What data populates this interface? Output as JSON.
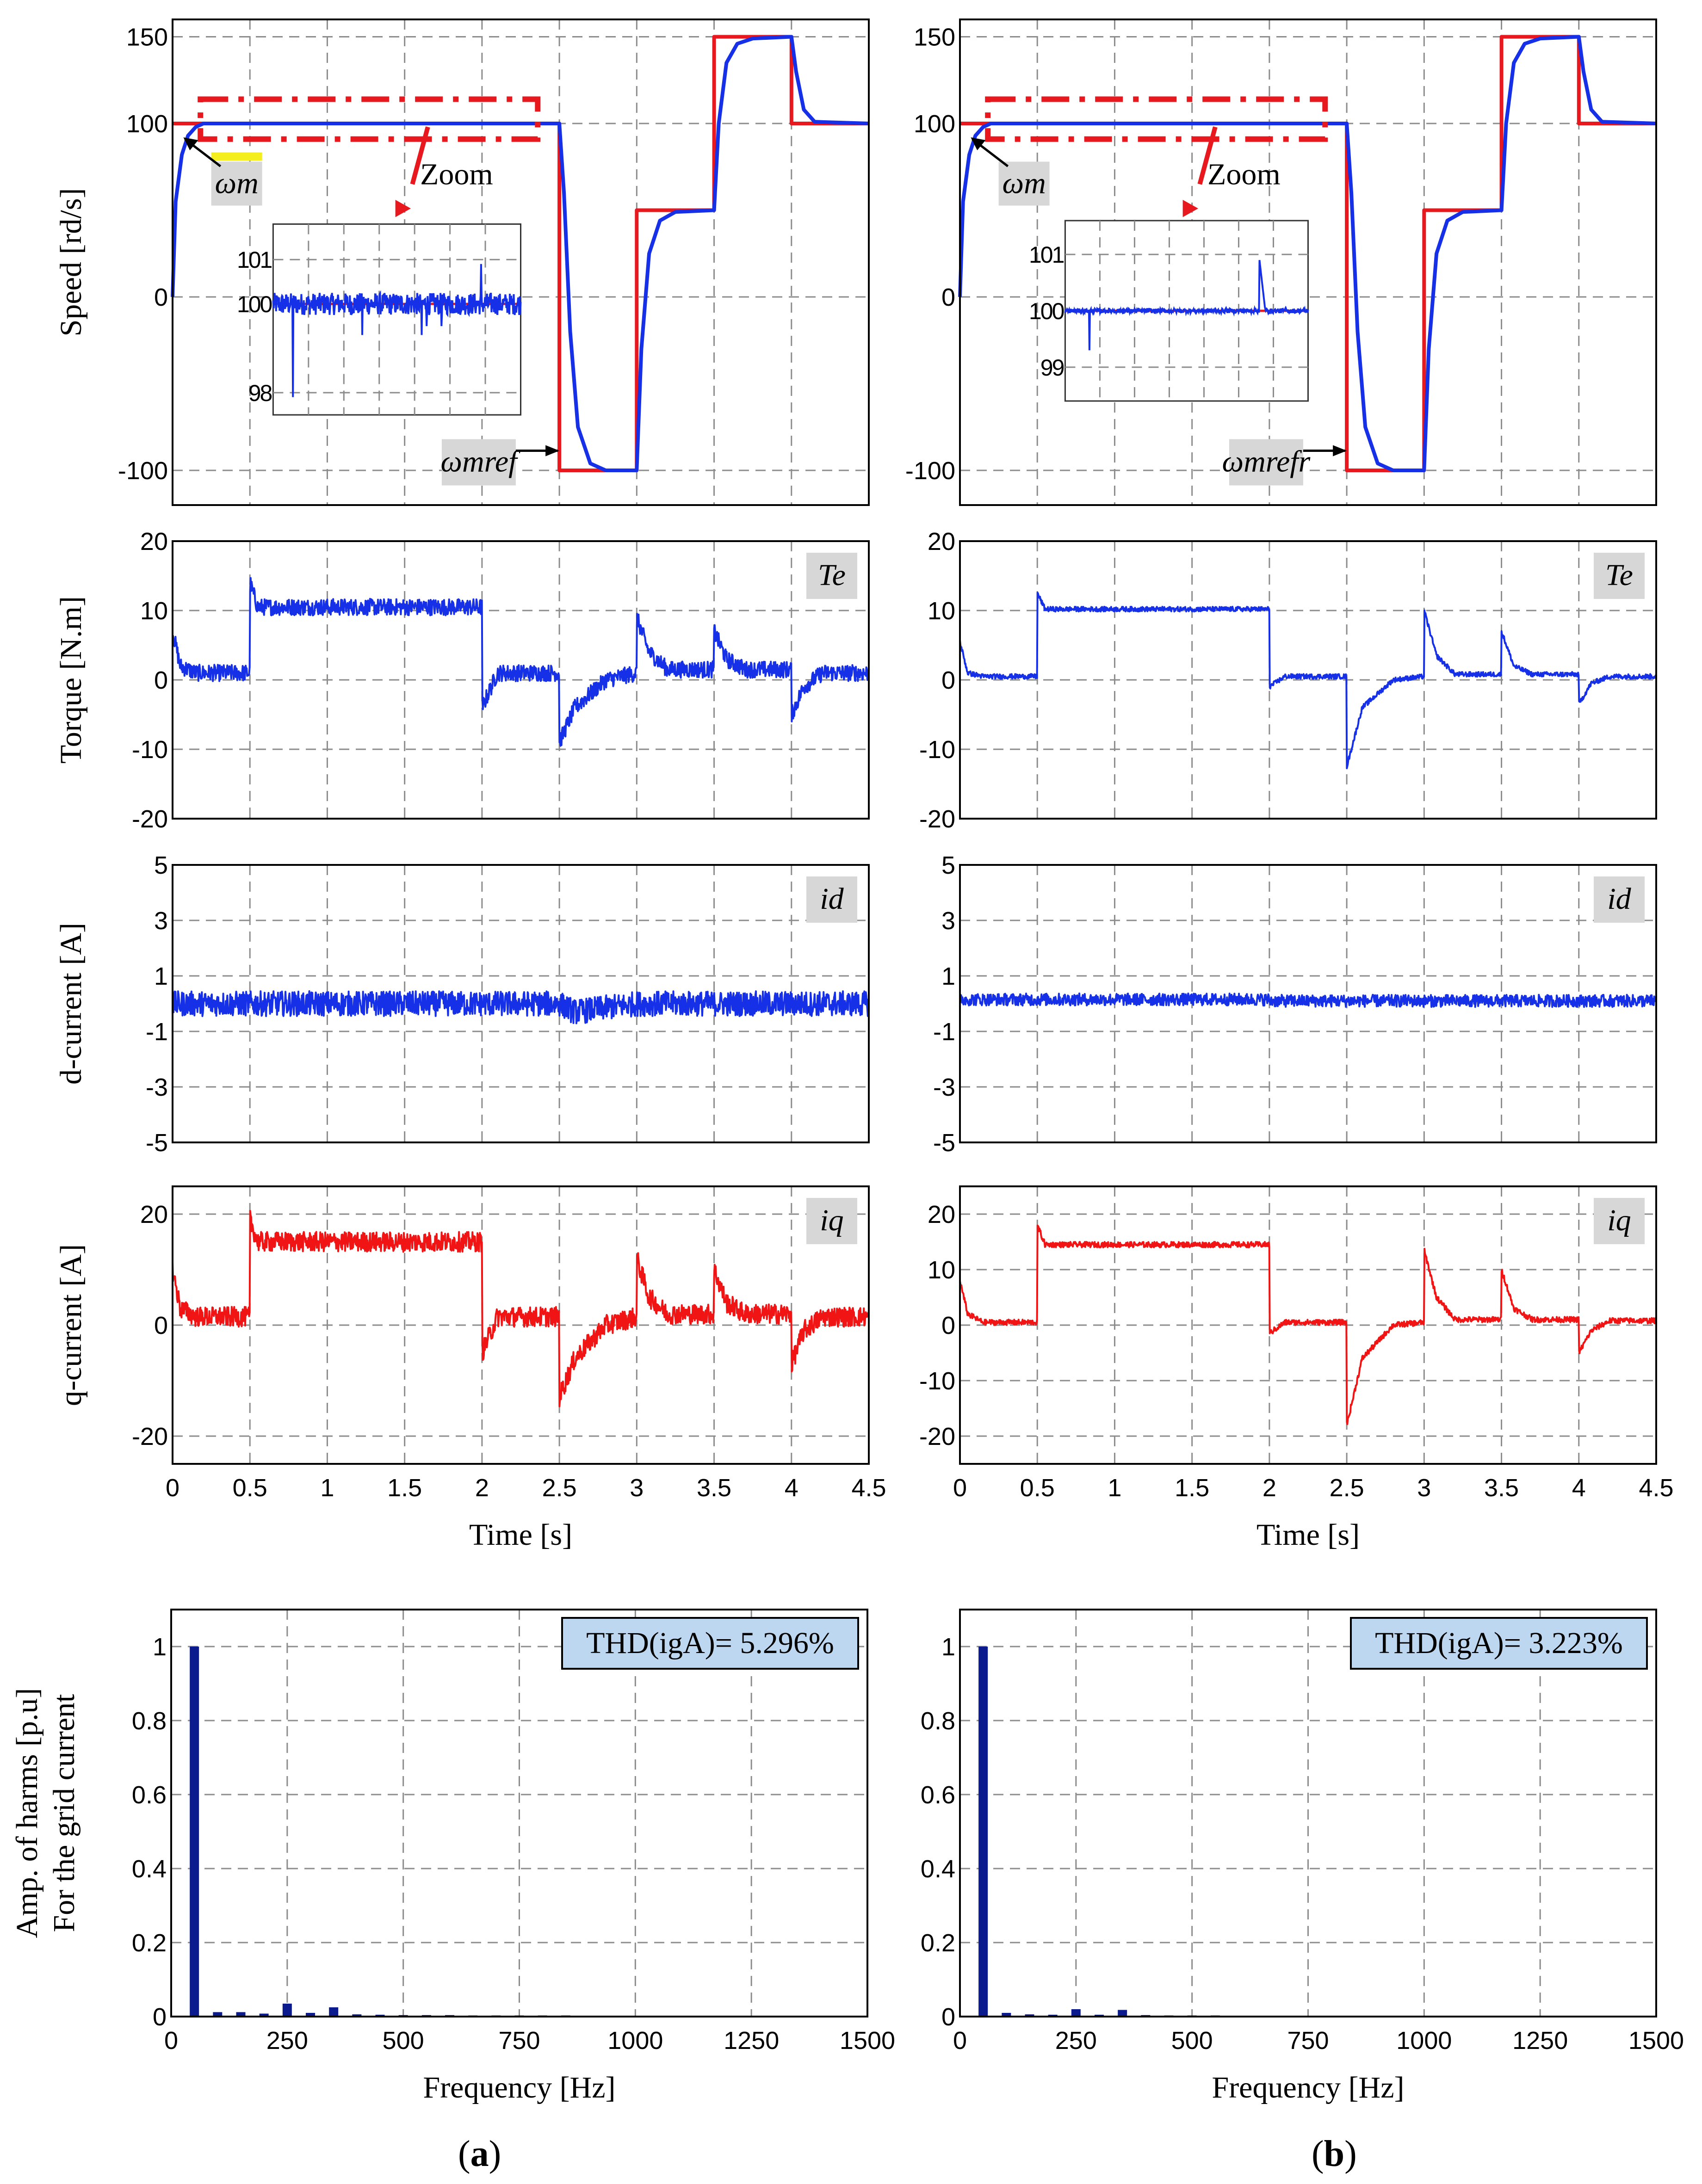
{
  "chart_data": [
    {
      "id": "a-speed",
      "type": "line",
      "panel": "a",
      "ylabel": "Speed [rd/s]",
      "xlabel": "",
      "xlim": [
        0,
        4.5
      ],
      "ylim": [
        -120,
        160
      ],
      "yticks": [
        "150",
        "100",
        "0",
        "-100"
      ],
      "ytick_values": [
        150,
        100,
        0,
        -100
      ],
      "grid": true,
      "series": [
        {
          "name": "reference",
          "color": "#e8191e",
          "x": [
            0,
            2.5,
            2.5,
            3.0,
            3.0,
            3.5,
            3.5,
            4.0,
            4.0,
            4.5
          ],
          "y": [
            100,
            100,
            -100,
            -100,
            50,
            50,
            150,
            150,
            100,
            100
          ]
        },
        {
          "name": "measured",
          "color": "#1530e6",
          "x": [
            0,
            0.02,
            0.06,
            0.1,
            0.15,
            0.2,
            2.5,
            2.53,
            2.57,
            2.62,
            2.7,
            2.8,
            3.0,
            3.03,
            3.08,
            3.15,
            3.25,
            3.5,
            3.53,
            3.58,
            3.65,
            3.75,
            4.0,
            4.03,
            4.08,
            4.15,
            4.5
          ],
          "y": [
            0,
            55,
            82,
            93,
            98,
            100,
            100,
            60,
            -20,
            -75,
            -96,
            -100,
            -100,
            -30,
            25,
            44,
            49,
            50,
            100,
            135,
            146,
            149,
            150,
            130,
            108,
            101,
            100
          ]
        }
      ],
      "annotations": {
        "zoom_label": "Zoom",
        "wm_label": "ωm",
        "wref_label": "ωmref"
      },
      "inset": {
        "yticks": [
          "101",
          "100",
          "98"
        ],
        "ytick_values": [
          101,
          100,
          98
        ],
        "ylim": [
          97.5,
          101.8
        ]
      }
    },
    {
      "id": "a-torque",
      "type": "line",
      "panel": "a",
      "ylabel": "Torque [N.m]",
      "xlim": [
        0,
        4.5
      ],
      "ylim": [
        -20,
        20
      ],
      "yticks": [
        "20",
        "10",
        "0",
        "-10",
        "-20"
      ],
      "ytick_values": [
        20,
        10,
        0,
        -10,
        -20
      ],
      "grid": true,
      "label": "Te",
      "series": [
        {
          "name": "Te",
          "color": "#1530e6",
          "x": [
            0,
            0.05,
            0.15,
            0.5,
            0.5,
            0.55,
            2.0,
            2.0,
            2.1,
            2.5,
            2.5,
            2.6,
            2.8,
            3.0,
            3.0,
            3.08,
            3.2,
            3.5,
            3.5,
            3.58,
            3.7,
            4.0,
            4.0,
            4.08,
            4.2,
            4.5
          ],
          "y": [
            7,
            2,
            1,
            1,
            14,
            10.5,
            10.5,
            -4,
            1,
            1,
            -9,
            -4,
            0,
            1,
            9,
            4,
            1.5,
            1.5,
            7,
            3,
            1.5,
            1.5,
            -5,
            -1,
            1,
            1
          ],
          "noise": 1.2
        }
      ]
    },
    {
      "id": "a-id",
      "type": "line",
      "panel": "a",
      "ylabel": "d-current [A]",
      "xlim": [
        0,
        4.5
      ],
      "ylim": [
        -5,
        5
      ],
      "yticks": [
        "5",
        "3",
        "1",
        "-1",
        "-3",
        "-5"
      ],
      "ytick_values": [
        5,
        3,
        1,
        -1,
        -3,
        -5
      ],
      "grid": true,
      "label": "id",
      "series": [
        {
          "name": "id",
          "color": "#1530e6",
          "x": [
            0,
            2.5,
            2.6,
            3.0,
            4.5
          ],
          "y": [
            0,
            0,
            -0.3,
            0,
            0
          ],
          "noise": 0.45
        }
      ]
    },
    {
      "id": "a-iq",
      "type": "line",
      "panel": "a",
      "ylabel": "q-current [A]",
      "xlim": [
        0,
        4.5
      ],
      "ylim": [
        -25,
        25
      ],
      "yticks": [
        "20",
        "0",
        "-20"
      ],
      "ytick_values": [
        20,
        0,
        -20
      ],
      "grid": true,
      "label": "iq",
      "series": [
        {
          "name": "iq",
          "color": "#f01414",
          "x": [
            0,
            0.05,
            0.15,
            0.5,
            0.5,
            0.55,
            2.0,
            2.0,
            2.1,
            2.5,
            2.5,
            2.6,
            2.8,
            3.0,
            3.0,
            3.08,
            3.2,
            3.5,
            3.5,
            3.58,
            3.7,
            4.0,
            4.0,
            4.08,
            4.2,
            4.5
          ],
          "y": [
            10,
            3,
            1.5,
            1.5,
            19,
            15,
            15,
            -5,
            1.5,
            1.5,
            -13,
            -6,
            0,
            1.5,
            12,
            5,
            2,
            2,
            10,
            4,
            2,
            2,
            -7,
            -1,
            1.5,
            1.5
          ],
          "noise": 1.8
        }
      ],
      "xticks": [
        "0",
        "0.5",
        "1",
        "1.5",
        "2",
        "2.5",
        "3",
        "3.5",
        "4",
        "4.5"
      ],
      "xtick_values": [
        0,
        0.5,
        1,
        1.5,
        2,
        2.5,
        3,
        3.5,
        4,
        4.5
      ],
      "xlabel": "Time [s]"
    },
    {
      "id": "a-thd",
      "type": "bar",
      "panel": "a",
      "ylabel": "Amp. of harms [p.u]",
      "ylabel2": "For the grid current",
      "xlabel": "Frequency [Hz]",
      "xlim": [
        0,
        1500
      ],
      "ylim": [
        0,
        1.1
      ],
      "yticks": [
        "1",
        "0.8",
        "0.6",
        "0.4",
        "0.2",
        "0"
      ],
      "ytick_values": [
        1,
        0.8,
        0.6,
        0.4,
        0.2,
        0
      ],
      "xticks": [
        "0",
        "250",
        "500",
        "750",
        "1000",
        "1250",
        "1500"
      ],
      "xtick_values": [
        0,
        250,
        500,
        750,
        1000,
        1250,
        1500
      ],
      "grid": true,
      "thd_label": "THD(igA)= 5.296%",
      "x": [
        50,
        100,
        150,
        200,
        250,
        300,
        350,
        400,
        450,
        500,
        550,
        600,
        650,
        700,
        750,
        800,
        850,
        900,
        950,
        1000,
        1050,
        1100,
        1150,
        1200
      ],
      "values": [
        1.0,
        0.012,
        0.012,
        0.008,
        0.035,
        0.01,
        0.025,
        0.006,
        0.005,
        0.004,
        0.004,
        0.004,
        0.003,
        0.003,
        0.003,
        0.003,
        0.003,
        0.002,
        0.002,
        0.002,
        0.002,
        0.002,
        0.002,
        0.002
      ]
    },
    {
      "id": "b-speed",
      "type": "line",
      "panel": "b",
      "ylabel": "",
      "xlim": [
        0,
        4.5
      ],
      "ylim": [
        -120,
        160
      ],
      "yticks": [
        "150",
        "100",
        "0",
        "-100"
      ],
      "ytick_values": [
        150,
        100,
        0,
        -100
      ],
      "grid": true,
      "series": [
        {
          "name": "reference",
          "color": "#e8191e",
          "x": [
            0,
            2.5,
            2.5,
            3.0,
            3.0,
            3.5,
            3.5,
            4.0,
            4.0,
            4.5
          ],
          "y": [
            100,
            100,
            -100,
            -100,
            50,
            50,
            150,
            150,
            100,
            100
          ]
        },
        {
          "name": "measured",
          "color": "#1530e6",
          "x": [
            0,
            0.02,
            0.06,
            0.1,
            0.15,
            0.2,
            2.5,
            2.53,
            2.57,
            2.62,
            2.7,
            2.8,
            3.0,
            3.03,
            3.08,
            3.15,
            3.25,
            3.5,
            3.53,
            3.58,
            3.65,
            3.75,
            4.0,
            4.03,
            4.08,
            4.15,
            4.5
          ],
          "y": [
            0,
            55,
            82,
            93,
            98,
            100,
            100,
            60,
            -20,
            -75,
            -96,
            -100,
            -100,
            -30,
            25,
            44,
            49,
            50,
            100,
            135,
            146,
            149,
            150,
            130,
            108,
            101,
            100
          ]
        }
      ],
      "annotations": {
        "zoom_label": "Zoom",
        "wm_label": "ωm",
        "wref_label": "ωmrefr"
      },
      "inset": {
        "yticks": [
          "101",
          "100",
          "99"
        ],
        "ytick_values": [
          101,
          100,
          99
        ],
        "ylim": [
          98.4,
          101.6
        ]
      }
    },
    {
      "id": "b-torque",
      "type": "line",
      "panel": "b",
      "ylabel": "",
      "xlim": [
        0,
        4.5
      ],
      "ylim": [
        -20,
        20
      ],
      "yticks": [
        "20",
        "10",
        "0",
        "-10",
        "-20"
      ],
      "ytick_values": [
        20,
        10,
        0,
        -10,
        -20
      ],
      "grid": true,
      "label": "Te",
      "series": [
        {
          "name": "Te",
          "color": "#1530e6",
          "x": [
            0,
            0.05,
            0.15,
            0.5,
            0.5,
            0.55,
            2.0,
            2.0,
            2.1,
            2.5,
            2.5,
            2.6,
            2.8,
            3.0,
            3.0,
            3.08,
            3.2,
            3.5,
            3.5,
            3.58,
            3.7,
            4.0,
            4.0,
            4.08,
            4.2,
            4.5
          ],
          "y": [
            5.5,
            1,
            0.5,
            0.5,
            12.5,
            10.2,
            10.2,
            -1,
            0.5,
            0.5,
            -12.5,
            -4,
            0,
            0.5,
            10,
            3.5,
            0.8,
            0.8,
            7,
            2,
            0.8,
            0.8,
            -3.5,
            -0.5,
            0.5,
            0.5
          ],
          "noise": 0.35
        }
      ]
    },
    {
      "id": "b-id",
      "type": "line",
      "panel": "b",
      "ylabel": "",
      "xlim": [
        0,
        4.5
      ],
      "ylim": [
        -5,
        5
      ],
      "yticks": [
        "5",
        "3",
        "1",
        "-1",
        "-3",
        "-5"
      ],
      "ytick_values": [
        5,
        3,
        1,
        -1,
        -3,
        -5
      ],
      "grid": true,
      "label": "id",
      "series": [
        {
          "name": "id",
          "color": "#1530e6",
          "x": [
            0,
            2.0,
            2.0,
            4.5
          ],
          "y": [
            0.15,
            0.15,
            0.1,
            0.1
          ],
          "noise": 0.22
        }
      ]
    },
    {
      "id": "b-iq",
      "type": "line",
      "panel": "b",
      "ylabel": "",
      "xlim": [
        0,
        4.5
      ],
      "ylim": [
        -25,
        25
      ],
      "yticks": [
        "20",
        "10",
        "0",
        "-10",
        "-20"
      ],
      "ytick_values": [
        20,
        10,
        0,
        -10,
        -20
      ],
      "grid": true,
      "label": "iq",
      "series": [
        {
          "name": "iq",
          "color": "#f01414",
          "x": [
            0,
            0.05,
            0.15,
            0.5,
            0.5,
            0.55,
            2.0,
            2.0,
            2.1,
            2.5,
            2.5,
            2.6,
            2.8,
            3.0,
            3.0,
            3.08,
            3.2,
            3.5,
            3.5,
            3.58,
            3.7,
            4.0,
            4.0,
            4.08,
            4.2,
            4.5
          ],
          "y": [
            8,
            2,
            0.5,
            0.5,
            18,
            14.5,
            14.5,
            -1.5,
            0.5,
            0.5,
            -18,
            -6,
            0,
            0.5,
            13.5,
            5,
            1,
            1,
            10,
            3,
            1,
            1,
            -5,
            -1,
            0.8,
            0.8
          ],
          "noise": 0.5
        }
      ],
      "xticks": [
        "0",
        "0.5",
        "1",
        "1.5",
        "2",
        "2.5",
        "3",
        "3.5",
        "4",
        "4.5"
      ],
      "xtick_values": [
        0,
        0.5,
        1,
        1.5,
        2,
        2.5,
        3,
        3.5,
        4,
        4.5
      ],
      "xlabel": "Time [s]"
    },
    {
      "id": "b-thd",
      "type": "bar",
      "panel": "b",
      "ylabel": "",
      "xlabel": "Frequency [Hz]",
      "xlim": [
        0,
        1500
      ],
      "ylim": [
        0,
        1.1
      ],
      "yticks": [
        "1",
        "0.8",
        "0.6",
        "0.4",
        "0.2",
        "0"
      ],
      "ytick_values": [
        1,
        0.8,
        0.6,
        0.4,
        0.2,
        0
      ],
      "xticks": [
        "0",
        "250",
        "500",
        "750",
        "1000",
        "1250",
        "1500"
      ],
      "xtick_values": [
        0,
        250,
        500,
        750,
        1000,
        1250,
        1500
      ],
      "grid": true,
      "thd_label": "THD(igA)= 3.223%",
      "x": [
        50,
        100,
        150,
        200,
        250,
        300,
        350,
        400,
        450,
        500,
        550,
        600,
        650,
        700,
        750,
        800,
        850,
        900,
        950,
        1000,
        1050,
        1100,
        1150,
        1200
      ],
      "values": [
        1.0,
        0.01,
        0.006,
        0.005,
        0.02,
        0.005,
        0.018,
        0.004,
        0.003,
        0.003,
        0.003,
        0.002,
        0.002,
        0.002,
        0.002,
        0.002,
        0.002,
        0.002,
        0.002,
        0.002,
        0.002,
        0.002,
        0.002,
        0.002
      ]
    }
  ],
  "colors": {
    "reference": "#e8191e",
    "speed": "#1530e6",
    "torque": "#1530e6",
    "id": "#1530e6",
    "iq": "#f01414",
    "bars": "#0b1a8c",
    "thd_box": "#bcd7ef",
    "label_box": "#d7d7d7",
    "highlight": "#f5ee1e"
  },
  "captions": {
    "a": "a",
    "b": "b"
  }
}
